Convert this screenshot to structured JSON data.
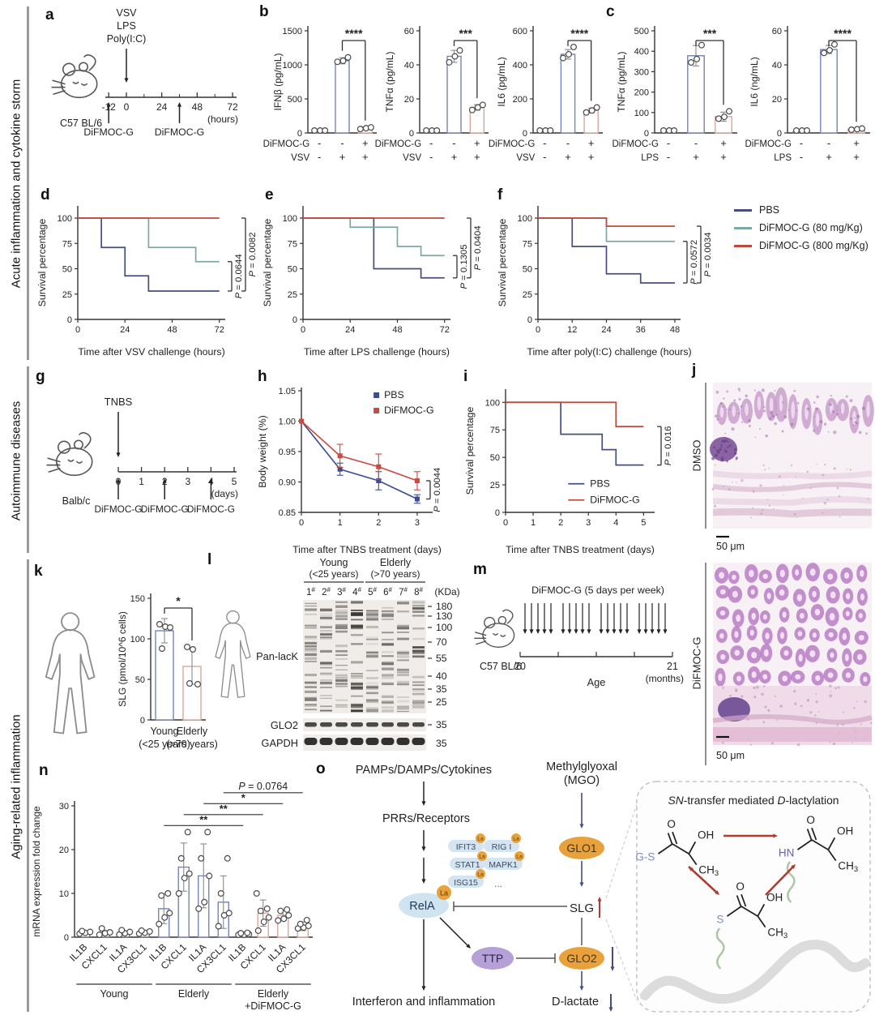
{
  "sidebar": {
    "sections": [
      {
        "label": "Acute inflammation and cytokine storm"
      },
      {
        "label": "Autoimmune diseases"
      },
      {
        "label": "Aging-related inflammation"
      }
    ]
  },
  "panel_letters": {
    "a": "a",
    "b": "b",
    "c": "c",
    "d": "d",
    "e": "e",
    "f": "f",
    "g": "g",
    "h": "h",
    "i": "i",
    "j": "j",
    "k": "k",
    "l": "l",
    "m": "m",
    "n": "n",
    "o": "o"
  },
  "timelines": {
    "a": {
      "mouse": "C57 BL/6",
      "stimuli": [
        "VSV",
        "LPS",
        "Poly(I:C)"
      ],
      "ticks": [
        -12,
        0,
        24,
        48,
        72
      ],
      "minor": [
        12,
        36,
        60
      ],
      "unit": "(hours)",
      "doses": [
        {
          "t": -12,
          "label": "DiFMOC-G"
        },
        {
          "t": 36,
          "label": "DiFMOC-G"
        }
      ]
    },
    "g": {
      "mouse": "Balb/c",
      "stimulus": "TNBS",
      "ticks": [
        0,
        1,
        2,
        3,
        4,
        5
      ],
      "unit": "(days)",
      "doses": [
        {
          "t": 0,
          "label": "DiFMOC-G"
        },
        {
          "t": 2,
          "label": "DiFMOC-G"
        },
        {
          "t": 4,
          "label": "DiFMOC-G"
        }
      ]
    },
    "m": {
      "mouse": "C57 BL/6",
      "label": "DiFMOC-G (5 days per week)",
      "start": "20",
      "end": "21",
      "unit": "(months)",
      "axis": "Age"
    }
  },
  "chart_data": {
    "b1": {
      "type": "bar",
      "ylabel": "IFNβ (pg/mL)",
      "ylim": [
        0,
        1500
      ],
      "yticks": [
        0,
        500,
        1000,
        1500
      ],
      "bars": [
        {
          "v": 5,
          "e": 3,
          "c": "#6e6e6e",
          "p": [
            2,
            4,
            6
          ]
        },
        {
          "v": 1060,
          "e": 45,
          "c": "#7585b5",
          "p": [
            1045,
            1060,
            1110
          ]
        },
        {
          "v": 70,
          "e": 16,
          "c": "#d9a89c",
          "p": [
            58,
            70,
            82
          ]
        }
      ],
      "sig": "****",
      "xrows": [
        {
          "label": "DiFMOC-G",
          "vals": [
            "-",
            "-",
            "+"
          ]
        },
        {
          "label": "VSV",
          "vals": [
            "-",
            "+",
            "+"
          ]
        }
      ]
    },
    "b2": {
      "type": "bar",
      "ylabel": "TNFα (pg/mL)",
      "ylim": [
        0,
        60
      ],
      "yticks": [
        0,
        20,
        40,
        60
      ],
      "bars": [
        {
          "v": 0.5,
          "e": 0.3,
          "c": "#6e6e6e",
          "p": [
            0.4,
            0.5,
            0.6
          ]
        },
        {
          "v": 45,
          "e": 3.5,
          "c": "#7585b5",
          "p": [
            41.5,
            45,
            48.5
          ]
        },
        {
          "v": 15,
          "e": 1.6,
          "c": "#d9a89c",
          "p": [
            13.5,
            15,
            16.5
          ]
        }
      ],
      "sig": "***",
      "xrows": [
        {
          "label": "DiFMOC-G",
          "vals": [
            "-",
            "-",
            "+"
          ]
        },
        {
          "label": "VSV",
          "vals": [
            "-",
            "+",
            "+"
          ]
        }
      ]
    },
    "b3": {
      "type": "bar",
      "ylabel": "IL6 (pg/mL)",
      "ylim": [
        0,
        600
      ],
      "yticks": [
        0,
        200,
        400,
        600
      ],
      "bars": [
        {
          "v": 4,
          "e": 2,
          "c": "#6e6e6e",
          "p": [
            2,
            4,
            6
          ]
        },
        {
          "v": 462,
          "e": 28,
          "c": "#7585b5",
          "p": [
            440,
            462,
            505
          ]
        },
        {
          "v": 132,
          "e": 14,
          "c": "#d9a89c",
          "p": [
            120,
            132,
            150
          ]
        }
      ],
      "sig": "****",
      "xrows": [
        {
          "label": "DiFMOC-G",
          "vals": [
            "-",
            "-",
            "+"
          ]
        },
        {
          "label": "VSV",
          "vals": [
            "-",
            "+",
            "+"
          ]
        }
      ]
    },
    "c1": {
      "type": "bar",
      "ylabel": "TNFα (pg/mL)",
      "ylim": [
        0,
        500
      ],
      "yticks": [
        0,
        100,
        200,
        300,
        400,
        500
      ],
      "bars": [
        {
          "v": 3,
          "e": 2,
          "c": "#6e6e6e",
          "p": [
            2,
            3,
            5
          ]
        },
        {
          "v": 378,
          "e": 50,
          "c": "#7585b5",
          "p": [
            345,
            362,
            430
          ]
        },
        {
          "v": 80,
          "e": 22,
          "c": "#d9a89c",
          "p": [
            70,
            79,
            106
          ]
        }
      ],
      "sig": "***",
      "xrows": [
        {
          "label": "DiFMOC-G",
          "vals": [
            "-",
            "-",
            "+"
          ]
        },
        {
          "label": "LPS",
          "vals": [
            "-",
            "+",
            "+"
          ]
        }
      ]
    },
    "c2": {
      "type": "bar",
      "ylabel": "IL6 (ng/mL)",
      "ylim": [
        0,
        60
      ],
      "yticks": [
        0,
        20,
        40,
        60
      ],
      "bars": [
        {
          "v": 0.5,
          "e": 0.2,
          "c": "#6e6e6e",
          "p": [
            0.4,
            0.5,
            0.6
          ]
        },
        {
          "v": 49,
          "e": 2.4,
          "c": "#7585b5",
          "p": [
            47,
            48.6,
            52
          ]
        },
        {
          "v": 2.2,
          "e": 0.5,
          "c": "#d9a89c",
          "p": [
            1.9,
            2.2,
            2.6
          ]
        }
      ],
      "sig": "****",
      "xrows": [
        {
          "label": "DiFMOC-G",
          "vals": [
            "-",
            "-",
            "+"
          ]
        },
        {
          "label": "LPS",
          "vals": [
            "-",
            "+",
            "+"
          ]
        }
      ]
    },
    "d": {
      "type": "survival",
      "xlabel": "Time after VSV challenge (hours)",
      "ylabel": "Survival percentage",
      "xticks": [
        0,
        24,
        48,
        72
      ],
      "xmax": 75,
      "xend": 72,
      "yticks": [
        0,
        25,
        50,
        75,
        100
      ],
      "series": [
        {
          "name": "PBS",
          "color": "#454f7d",
          "pts": [
            [
              0,
              100
            ],
            [
              12,
              71
            ],
            [
              24,
              43
            ],
            [
              36,
              28
            ]
          ]
        },
        {
          "name": "DiFMOC-G (80 mg/Kg)",
          "color": "#7ea8a3",
          "pts": [
            [
              0,
              100
            ],
            [
              36,
              71
            ],
            [
              60,
              57
            ]
          ]
        },
        {
          "name": "DiFMOC-G (800 mg/Kg)",
          "color": "#c0493e",
          "pts": [
            [
              0,
              100
            ]
          ]
        }
      ],
      "brackets": [
        {
          "label": "P = 0.0644",
          "y1": 28,
          "y2": 57
        },
        {
          "label": "P = 0.0082",
          "y1": 28,
          "y2": 100
        }
      ]
    },
    "e": {
      "type": "survival",
      "xlabel": "Time after LPS challenge (hours)",
      "ylabel": "Survival percentage",
      "xticks": [
        0,
        24,
        48,
        72
      ],
      "xmax": 75,
      "xend": 72,
      "yticks": [
        0,
        25,
        50,
        75,
        100
      ],
      "series": [
        {
          "name": "PBS",
          "color": "#454f7d",
          "pts": [
            [
              0,
              100
            ],
            [
              36,
              50
            ],
            [
              60,
              41
            ]
          ]
        },
        {
          "name": "DiFMOC-G (80 mg/Kg)",
          "color": "#7ea8a3",
          "pts": [
            [
              0,
              100
            ],
            [
              24,
              91
            ],
            [
              48,
              72
            ],
            [
              60,
              63
            ]
          ]
        },
        {
          "name": "DiFMOC-G (800 mg/Kg)",
          "color": "#c0493e",
          "pts": [
            [
              0,
              100
            ]
          ]
        }
      ],
      "brackets": [
        {
          "label": "P = 0.1305",
          "y1": 41,
          "y2": 63
        },
        {
          "label": "P = 0.0404",
          "y1": 41,
          "y2": 100
        }
      ]
    },
    "f": {
      "type": "survival",
      "xlabel": "Time after poly(I:C) challenge (hours)",
      "ylabel": "Survival percentage",
      "xticks": [
        0,
        12,
        24,
        36,
        48
      ],
      "xmax": 50,
      "xend": 48,
      "yticks": [
        0,
        25,
        50,
        75,
        100
      ],
      "series": [
        {
          "name": "PBS",
          "color": "#454f7d",
          "pts": [
            [
              0,
              100
            ],
            [
              12,
              72
            ],
            [
              24,
              45
            ],
            [
              36,
              36
            ]
          ]
        },
        {
          "name": "DiFMOC-G (80 mg/Kg)",
          "color": "#7ea8a3",
          "pts": [
            [
              0,
              100
            ],
            [
              24,
              77
            ]
          ]
        },
        {
          "name": "DiFMOC-G (800 mg/Kg)",
          "color": "#c0493e",
          "pts": [
            [
              0,
              100
            ],
            [
              24,
              92
            ]
          ]
        }
      ],
      "brackets": [
        {
          "label": "P = 0.0572",
          "y1": 36,
          "y2": 77
        },
        {
          "label": "P = 0.0034",
          "y1": 36,
          "y2": 92
        }
      ],
      "legend": [
        {
          "label": "PBS",
          "color": "#454f7d"
        },
        {
          "label": "DiFMOC-G (80 mg/Kg)",
          "color": "#7ea8a3"
        },
        {
          "label": "DiFMOC-G (800 mg/Kg)",
          "color": "#c0493e"
        }
      ]
    },
    "h": {
      "type": "line",
      "xlabel": "Time after TNBS treatment (days)",
      "ylabel": "Body weight (%)",
      "xticks": [
        0,
        1,
        2,
        3
      ],
      "xmax": 3.4,
      "ylim": [
        0.85,
        1.05
      ],
      "yticks": [
        0.85,
        0.9,
        0.95,
        1.0,
        1.05
      ],
      "series": [
        {
          "name": "PBS",
          "color": "#3a4d96",
          "v": [
            1.0,
            0.921,
            0.902,
            0.872
          ],
          "e": [
            0,
            0.01,
            0.015,
            0.007
          ]
        },
        {
          "name": "DiFMOC-G",
          "color": "#cb4a3f",
          "v": [
            1.0,
            0.943,
            0.925,
            0.902
          ],
          "e": [
            0,
            0.019,
            0.021,
            0.015
          ]
        }
      ],
      "p": "P = 0.0044"
    },
    "i": {
      "type": "survival",
      "xlabel": "Time after TNBS treatment (days)",
      "ylabel": "Survival percentage",
      "xticks": [
        0,
        1,
        2,
        3,
        4,
        5
      ],
      "xmax": 5.4,
      "xend": 5,
      "yticks": [
        0,
        25,
        50,
        75,
        100
      ],
      "series": [
        {
          "name": "PBS",
          "color": "#454f7d",
          "pts": [
            [
              0,
              100
            ],
            [
              2,
              71
            ],
            [
              3.5,
              57
            ],
            [
              4,
              43
            ]
          ]
        },
        {
          "name": "DiFMOC-G",
          "color": "#c0493e",
          "pts": [
            [
              0,
              100
            ],
            [
              4,
              78
            ]
          ]
        }
      ],
      "brackets": [
        {
          "label": "P = 0.016",
          "y1": 43,
          "y2": 78
        }
      ],
      "legend": [
        {
          "label": "PBS",
          "color": "#454f7d"
        },
        {
          "label": "DiFMOC-G",
          "color": "#c0493e"
        }
      ]
    },
    "k": {
      "type": "bar",
      "ylabel": "SLG (pmol/10^6 cells)",
      "ylim": [
        0,
        150
      ],
      "yticks": [
        0,
        50,
        100,
        150
      ],
      "bars": [
        {
          "v": 110,
          "e": 15,
          "c": "#7585b5",
          "p": [
            118,
            115,
            114,
            88
          ]
        },
        {
          "v": 66,
          "e": 22,
          "c": "#d9a89c",
          "p": [
            90,
            87,
            44,
            45
          ]
        }
      ],
      "sig": "*",
      "xcats": [
        [
          "Young",
          "(<25 years)"
        ],
        [
          "Elderly",
          "(>70 years)"
        ]
      ]
    },
    "n": {
      "type": "bar",
      "ylabel": "mRNA expression fold change",
      "ylim": [
        0,
        30
      ],
      "yticks": [
        0,
        10,
        20,
        30
      ],
      "genes": [
        "IL1B",
        "CXCL1",
        "IL1A",
        "CX3CL1",
        "IL1B",
        "CXCL1",
        "IL1A",
        "CX3CL1",
        "IL1B",
        "CXCL1",
        "IL1A",
        "CX3CL1"
      ],
      "bars": [
        {
          "v": 1.1,
          "e": 0.3,
          "c": "#6e6e6e",
          "p": [
            0.8,
            1.0,
            1.2,
            1.4
          ]
        },
        {
          "v": 1.0,
          "e": 0.5,
          "c": "#6e6e6e",
          "p": [
            0.5,
            0.9,
            1.1,
            2.0
          ]
        },
        {
          "v": 1.0,
          "e": 0.4,
          "c": "#6e6e6e",
          "p": [
            0.6,
            0.9,
            1.2,
            1.6
          ]
        },
        {
          "v": 1.1,
          "e": 0.4,
          "c": "#6e6e6e",
          "p": [
            0.8,
            1.0,
            1.3,
            1.5
          ]
        },
        {
          "v": 6.5,
          "e": 3.4,
          "c": "#7585b5",
          "p": [
            3.0,
            4.5,
            5.5,
            9.5,
            10.0
          ]
        },
        {
          "v": 16.0,
          "e": 5.5,
          "c": "#7585b5",
          "p": [
            10.0,
            13.5,
            14.5,
            18.0,
            24.0
          ]
        },
        {
          "v": 14.0,
          "e": 7.3,
          "c": "#7585b5",
          "p": [
            6.5,
            8.0,
            14.0,
            18.0,
            24.0
          ]
        },
        {
          "v": 8.0,
          "e": 6.0,
          "c": "#7585b5",
          "p": [
            2.5,
            5.0,
            5.5,
            10.0,
            18.0
          ]
        },
        {
          "v": 0.7,
          "e": 0.3,
          "c": "#6e6e6e",
          "p": [
            0.3,
            0.5,
            0.7,
            0.9,
            1.0
          ]
        },
        {
          "v": 5.5,
          "e": 3.0,
          "c": "#d9a89c",
          "p": [
            1.5,
            3.5,
            4.5,
            6.0,
            6.5,
            10.0
          ]
        },
        {
          "v": 5.0,
          "e": 1.2,
          "c": "#d9a89c",
          "p": [
            3.8,
            4.2,
            5.0,
            6.0,
            6.3
          ]
        },
        {
          "v": 2.5,
          "e": 1.0,
          "c": "#d9a89c",
          "p": [
            2.0,
            2.2,
            2.6,
            3.0,
            3.9
          ]
        }
      ],
      "groups": [
        {
          "label": [
            "Young"
          ],
          "from": 0,
          "to": 3
        },
        {
          "label": [
            "Elderly"
          ],
          "from": 4,
          "to": 7
        },
        {
          "label": [
            "Elderly",
            "+DiFMOC-G"
          ],
          "from": 8,
          "to": 11
        }
      ],
      "siglines": [
        {
          "from": 4,
          "to": 8,
          "y": 25.5,
          "label": "**"
        },
        {
          "from": 5,
          "to": 9,
          "y": 28,
          "label": "**"
        },
        {
          "from": 6,
          "to": 10,
          "y": 30.5,
          "label": "*"
        },
        {
          "from": 7,
          "to": 11,
          "y": 33,
          "label": "P = 0.0764"
        }
      ]
    }
  },
  "histology": {
    "labels": [
      "DMSO",
      "DiFMOC-G"
    ],
    "scale": "50 μm"
  },
  "blot": {
    "groups": [
      {
        "label": "Young",
        "sub": "(<25 years)"
      },
      {
        "label": "Elderly",
        "sub": "(>70 years)"
      }
    ],
    "lanes": [
      "1",
      "2",
      "3",
      "4",
      "5",
      "6",
      "7",
      "8"
    ],
    "kda": "(KDa)",
    "markers": [
      180,
      130,
      100,
      70,
      55,
      40,
      35,
      25
    ],
    "pan": "Pan-lacK",
    "glo2": "GLO2",
    "gapdh": "GAPDH",
    "glo2_m": "35",
    "gapdh_m": "35"
  },
  "pathway": {
    "pamps": "PAMPs/DAMPs/Cytokines",
    "prrs": "PRRs/Receptors",
    "rela": "RelA",
    "la": "La",
    "pills": [
      "IFIT3",
      "RIG I",
      "STAT1",
      "MAPK1",
      "ISG15"
    ],
    "dots": "...",
    "interferon": "Interferon and inflammation",
    "mgo": [
      "Methylglyoxal",
      "(MGO)"
    ],
    "glo1": "GLO1",
    "slg": "SLG",
    "glo2": "GLO2",
    "ttp": "TTP",
    "dlac": "D-lactate",
    "inset": {
      "title": [
        [
          "SN",
          1
        ],
        [
          "-transfer mediated ",
          0
        ],
        [
          "D",
          1
        ],
        [
          "-lactylation",
          0
        ]
      ],
      "o": "O",
      "oh": "OH",
      "ch": "CH",
      "sub3": "3",
      "gs": "G-S",
      "hn": "HN",
      "s": "S"
    }
  }
}
